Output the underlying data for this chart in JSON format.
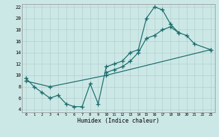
{
  "xlabel": "Humidex (Indice chaleur)",
  "background_color": "#cce8e6",
  "grid_color": "#b0cece",
  "line_color": "#1a6b6b",
  "xlim": [
    -0.5,
    23.5
  ],
  "ylim": [
    3.5,
    22.5
  ],
  "xticks": [
    0,
    1,
    2,
    3,
    4,
    5,
    6,
    7,
    8,
    9,
    10,
    11,
    12,
    13,
    14,
    15,
    16,
    17,
    18,
    19,
    20,
    21,
    22,
    23
  ],
  "yticks": [
    4,
    6,
    8,
    10,
    12,
    14,
    16,
    18,
    20,
    22
  ],
  "curve1_x": [
    0,
    1,
    2,
    3,
    4,
    5,
    6,
    7,
    8,
    9,
    10,
    11,
    12,
    13,
    14,
    15,
    16,
    17,
    18,
    19
  ],
  "curve1_y": [
    9.5,
    8.0,
    7.0,
    6.0,
    6.5,
    5.0,
    4.5,
    4.5,
    8.5,
    5.0,
    11.5,
    12.0,
    12.5,
    14.0,
    14.5,
    20.0,
    22.0,
    21.5,
    19.0,
    17.5
  ],
  "curve2_x": [
    10,
    11,
    12,
    13,
    14,
    15,
    16,
    17,
    18,
    19,
    20,
    21,
    23
  ],
  "curve2_y": [
    10.5,
    11.0,
    11.5,
    12.5,
    14.0,
    16.5,
    17.0,
    18.0,
    18.5,
    17.5,
    17.0,
    15.5,
    14.5
  ],
  "curve3_x": [
    0,
    3,
    10,
    23
  ],
  "curve3_y": [
    9.0,
    8.0,
    10.0,
    14.5
  ],
  "marker": "+",
  "markersize": 4,
  "linewidth": 0.9
}
